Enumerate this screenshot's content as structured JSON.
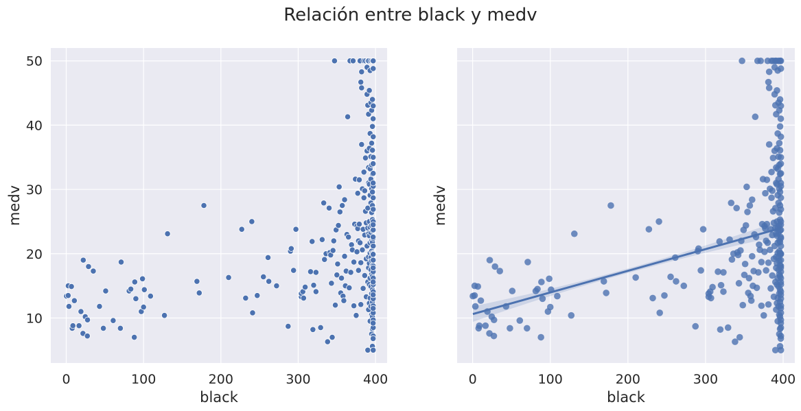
{
  "figure": {
    "title": "Relación entre black y medv"
  },
  "colors": {
    "panel_bg": "#eaeaf2",
    "grid": "#ffffff",
    "points": "#4c72b0",
    "text": "#262626"
  },
  "chart_data": [
    {
      "type": "scatter",
      "xlabel": "black",
      "ylabel": "medv",
      "xlim": [
        -20,
        415
      ],
      "ylim": [
        3,
        52
      ],
      "x_ticks": [
        0,
        100,
        200,
        300,
        400
      ],
      "y_ticks": [
        10,
        20,
        30,
        40,
        50
      ],
      "grid": true,
      "series": [
        {
          "points": [
            [
              0.3,
              13.4
            ],
            [
              2.5,
              13.5
            ],
            [
              2.6,
              15.0
            ],
            [
              3.5,
              11.8
            ],
            [
              6.7,
              14.9
            ],
            [
              7.7,
              8.4
            ],
            [
              8.6,
              8.8
            ],
            [
              10.5,
              12.7
            ],
            [
              16.5,
              8.8
            ],
            [
              19,
              11
            ],
            [
              21.6,
              7.6
            ],
            [
              22,
              19
            ],
            [
              24.6,
              10.2
            ],
            [
              27.3,
              7.2
            ],
            [
              27.5,
              9.7
            ],
            [
              28.8,
              18
            ],
            [
              35,
              17.3
            ],
            [
              43,
              11.8
            ],
            [
              48,
              8.4
            ],
            [
              51,
              14.2
            ],
            [
              60.7,
              9.6
            ],
            [
              70,
              8.4
            ],
            [
              71,
              18.7
            ],
            [
              81.3,
              14.2
            ],
            [
              83.5,
              14.5
            ],
            [
              88,
              7
            ],
            [
              88.6,
              15.6
            ],
            [
              90,
              13
            ],
            [
              97,
              11
            ],
            [
              98.6,
              16.1
            ],
            [
              100,
              11.7
            ],
            [
              101,
              14.4
            ],
            [
              109,
              13.4
            ],
            [
              127,
              10.4
            ],
            [
              131,
              23.1
            ],
            [
              169,
              15.7
            ],
            [
              172,
              13.9
            ],
            [
              178,
              27.5
            ],
            [
              210,
              16.3
            ],
            [
              227,
              23.8
            ],
            [
              232,
              13.1
            ],
            [
              240,
              25
            ],
            [
              241,
              10.8
            ],
            [
              247,
              13.5
            ],
            [
              255,
              16.4
            ],
            [
              261,
              19.4
            ],
            [
              262,
              15.7
            ],
            [
              272,
              15
            ],
            [
              287,
              8.7
            ],
            [
              290,
              20.4
            ],
            [
              291,
              20.8
            ],
            [
              294,
              17.4
            ],
            [
              297,
              23.8
            ],
            [
              304,
              13.3
            ],
            [
              304,
              13.8
            ],
            [
              306,
              14.1
            ],
            [
              307,
              13.1
            ],
            [
              309,
              14.8
            ],
            [
              316,
              17.2
            ],
            [
              318,
              21.9
            ],
            [
              319,
              8.2
            ],
            [
              320,
              15.1
            ],
            [
              323,
              14.1
            ],
            [
              323,
              17.1
            ],
            [
              329,
              8.5
            ],
            [
              331,
              22.2
            ],
            [
              333,
              27.9
            ],
            [
              334,
              19.1
            ],
            [
              336,
              20
            ],
            [
              338,
              6.3
            ],
            [
              340,
              27.1
            ],
            [
              341,
              20.2
            ],
            [
              342,
              19.8
            ],
            [
              343,
              15.4
            ],
            [
              344,
              7.0
            ],
            [
              345,
              20.5
            ],
            [
              346,
              22
            ],
            [
              347,
              50
            ],
            [
              348,
              12
            ],
            [
              349,
              23.7
            ],
            [
              350,
              16.7
            ],
            [
              351,
              18.4
            ],
            [
              352,
              24.4
            ],
            [
              353,
              30.4
            ],
            [
              354,
              26.5
            ],
            [
              355,
              13.9
            ],
            [
              356,
              16.2
            ],
            [
              357,
              27.5
            ],
            [
              358,
              13.4
            ],
            [
              359,
              12.7
            ],
            [
              360,
              19.6
            ],
            [
              360,
              28.4
            ],
            [
              361,
              15
            ],
            [
              362,
              17.3
            ],
            [
              363,
              23
            ],
            [
              364,
              41.3
            ],
            [
              365,
              22.6
            ],
            [
              366,
              14.7
            ],
            [
              367,
              50
            ],
            [
              368,
              17.1
            ],
            [
              369,
              21.4
            ],
            [
              370,
              20.6
            ],
            [
              371,
              50
            ],
            [
              372,
              18.7
            ],
            [
              372,
              11.9
            ],
            [
              373,
              24.6
            ],
            [
              374,
              31.6
            ],
            [
              375,
              10.4
            ],
            [
              376,
              20.3
            ],
            [
              376,
              24.3
            ],
            [
              377,
              23.9
            ],
            [
              377,
              29.4
            ],
            [
              378,
              22
            ],
            [
              378,
              17.4
            ],
            [
              379,
              31.5
            ],
            [
              379,
              24.6
            ],
            [
              380,
              50
            ],
            [
              380,
              21.7
            ],
            [
              381,
              46.7
            ],
            [
              381,
              12.1
            ],
            [
              381,
              18.6
            ],
            [
              382,
              45.8
            ],
            [
              382,
              48.3
            ],
            [
              382,
              37
            ],
            [
              383,
              30.1
            ],
            [
              383,
              20.6
            ],
            [
              384,
              23.8
            ],
            [
              384,
              14.6
            ],
            [
              385,
              50
            ],
            [
              385,
              32.7
            ],
            [
              385,
              28.7
            ],
            [
              386,
              29.8
            ],
            [
              386,
              22.9
            ],
            [
              386,
              16.6
            ],
            [
              387,
              50
            ],
            [
              387,
              34.9
            ],
            [
              387,
              26.6
            ],
            [
              388,
              24.8
            ],
            [
              388,
              19.2
            ],
            [
              388,
              13.3
            ],
            [
              389,
              49
            ],
            [
              389,
              44.8
            ],
            [
              389,
              36
            ],
            [
              389,
              21.2
            ],
            [
              390,
              50
            ],
            [
              390,
              43.1
            ],
            [
              390,
              27.1
            ],
            [
              390,
              24
            ],
            [
              390,
              15.6
            ],
            [
              390,
              5
            ],
            [
              391,
              50
            ],
            [
              391,
              41.7
            ],
            [
              391,
              33.4
            ],
            [
              391,
              31
            ],
            [
              391,
              23.1
            ],
            [
              391,
              19.5
            ],
            [
              391,
              17.8
            ],
            [
              391,
              11.3
            ],
            [
              392,
              45.4
            ],
            [
              392,
              36.4
            ],
            [
              392,
              30.8
            ],
            [
              392,
              25
            ],
            [
              392,
              22.8
            ],
            [
              392,
              18.5
            ],
            [
              392,
              15.2
            ],
            [
              392,
              12.3
            ],
            [
              393,
              48.5
            ],
            [
              393,
              38.7
            ],
            [
              393,
              33.2
            ],
            [
              393,
              29.1
            ],
            [
              393,
              24.1
            ],
            [
              393,
              21.7
            ],
            [
              393,
              20.1
            ],
            [
              393,
              16.2
            ],
            [
              393,
              13.1
            ],
            [
              393,
              9.5
            ],
            [
              394,
              50
            ],
            [
              394,
              43.5
            ],
            [
              394,
              35.1
            ],
            [
              394,
              31.6
            ],
            [
              394,
              27.9
            ],
            [
              394,
              23.3
            ],
            [
              394,
              19.4
            ],
            [
              394,
              17.5
            ],
            [
              394,
              14.9
            ],
            [
              394,
              11.8
            ],
            [
              395,
              42.3
            ],
            [
              395,
              37.2
            ],
            [
              395,
              33.8
            ],
            [
              395,
              30.1
            ],
            [
              395,
              26.4
            ],
            [
              395,
              24.4
            ],
            [
              395,
              22
            ],
            [
              395,
              20.4
            ],
            [
              395,
              18.9
            ],
            [
              395,
              16.8
            ],
            [
              395,
              13.8
            ],
            [
              395,
              10.5
            ],
            [
              395,
              7.5
            ],
            [
              396,
              50
            ],
            [
              396,
              44
            ],
            [
              396,
              39.8
            ],
            [
              396,
              36.1
            ],
            [
              396,
              32.4
            ],
            [
              396,
              29.6
            ],
            [
              396,
              27.5
            ],
            [
              396,
              25.3
            ],
            [
              396,
              23.6
            ],
            [
              396,
              21.8
            ],
            [
              396,
              20.1
            ],
            [
              396,
              18.2
            ],
            [
              396,
              16.5
            ],
            [
              396,
              14.4
            ],
            [
              396,
              12.5
            ],
            [
              396,
              10.2
            ],
            [
              396,
              8.3
            ],
            [
              396,
              5.6
            ],
            [
              397,
              50
            ],
            [
              397,
              48.8
            ],
            [
              397,
              43
            ],
            [
              397,
              38.2
            ],
            [
              397,
              35
            ],
            [
              397,
              32.5
            ],
            [
              397,
              30.5
            ],
            [
              397,
              28.7
            ],
            [
              397,
              26.9
            ],
            [
              397,
              25
            ],
            [
              397,
              23.7
            ],
            [
              397,
              22.4
            ],
            [
              397,
              21.2
            ],
            [
              397,
              20
            ],
            [
              397,
              19
            ],
            [
              397,
              18.1
            ],
            [
              397,
              17.2
            ],
            [
              397,
              16.2
            ],
            [
              397,
              15.2
            ],
            [
              397,
              14.1
            ],
            [
              397,
              13
            ],
            [
              397,
              11.9
            ],
            [
              397,
              10.8
            ],
            [
              397,
              9.7
            ],
            [
              397,
              8.5
            ],
            [
              397,
              7.2
            ],
            [
              397,
              5
            ],
            [
              396.9,
              41
            ],
            [
              396.9,
              34
            ],
            [
              396.9,
              31
            ],
            [
              396.9,
              24.5
            ],
            [
              396.9,
              22.6
            ],
            [
              396.9,
              19.9
            ],
            [
              396.9,
              17.8
            ],
            [
              396.9,
              15.6
            ],
            [
              396.9,
              13.6
            ],
            [
              396.9,
              11.5
            ],
            [
              396.9,
              9.2
            ],
            [
              396.9,
              6.8
            ]
          ]
        }
      ]
    },
    {
      "type": "scatter",
      "xlabel": "black",
      "ylabel": "medv",
      "xlim": [
        -20,
        415
      ],
      "ylim": [
        3,
        52
      ],
      "x_ticks": [
        0,
        100,
        200,
        300,
        400
      ],
      "y_ticks": [
        10,
        20,
        30,
        40,
        50
      ],
      "grid": true,
      "regression": {
        "x_range": [
          0.3,
          396.9
        ],
        "intercept": 10.6,
        "slope": 0.0337,
        "ci_halfwidth_edges": 1.2,
        "ci_halfwidth_center": 0.35
      },
      "series": [
        {
          "points": "same_as_left"
        }
      ]
    }
  ]
}
